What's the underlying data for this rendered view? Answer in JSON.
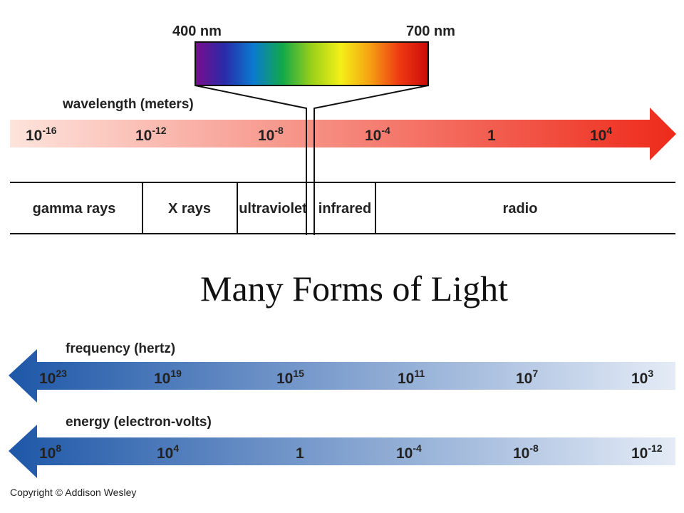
{
  "spectrum_bar": {
    "label_left": "400 nm",
    "label_right": "700 nm",
    "colors": [
      "#7a0d8c",
      "#2a2aa8",
      "#0a7ad0",
      "#12a84a",
      "#9ad018",
      "#f4f018",
      "#f6a012",
      "#ee3a12",
      "#cc0a0a"
    ]
  },
  "wavelength": {
    "label": "wavelength (meters)",
    "ticks": [
      {
        "base": "10",
        "exp": "-16"
      },
      {
        "base": "10",
        "exp": "-12"
      },
      {
        "base": "10",
        "exp": "-8"
      },
      {
        "base": "10",
        "exp": "-4"
      },
      {
        "base": "1",
        "exp": ""
      },
      {
        "base": "10",
        "exp": "4"
      }
    ],
    "gradient": [
      "#fde4dc",
      "#ee2a1a"
    ]
  },
  "bands": [
    "gamma rays",
    "X rays",
    "ultraviolet",
    "infrared",
    "radio"
  ],
  "title": "Many Forms of Light",
  "frequency": {
    "label": "frequency (hertz)",
    "ticks": [
      {
        "base": "10",
        "exp": "23"
      },
      {
        "base": "10",
        "exp": "19"
      },
      {
        "base": "10",
        "exp": "15"
      },
      {
        "base": "10",
        "exp": "11"
      },
      {
        "base": "10",
        "exp": "7"
      },
      {
        "base": "10",
        "exp": "3"
      }
    ],
    "gradient": [
      "#1e57a8",
      "#e4ebf6"
    ]
  },
  "energy": {
    "label": "energy (electron-volts)",
    "ticks": [
      {
        "base": "10",
        "exp": "8"
      },
      {
        "base": "10",
        "exp": "4"
      },
      {
        "base": "1",
        "exp": ""
      },
      {
        "base": "10",
        "exp": "-4"
      },
      {
        "base": "10",
        "exp": "-8"
      },
      {
        "base": "10",
        "exp": "-12"
      }
    ],
    "gradient": [
      "#1e57a8",
      "#e4ebf6"
    ]
  },
  "copyright": "Copyright © Addison Wesley"
}
